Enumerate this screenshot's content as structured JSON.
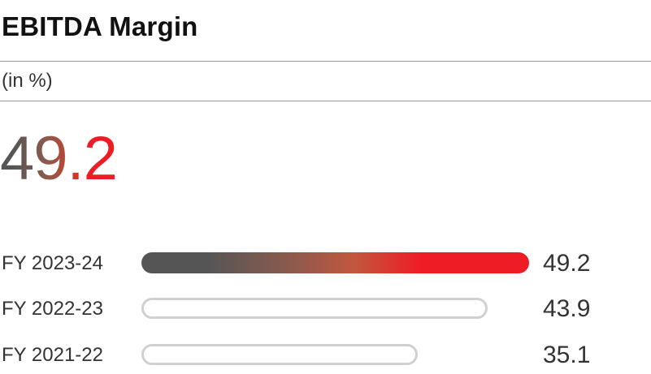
{
  "title": "EBITDA Margin",
  "unit_label": "(in %)",
  "headline_value": "49.2",
  "colors": {
    "highlight_start": "#555555",
    "highlight_end": "#ee1c25",
    "track_outline": "#d0d0d0"
  },
  "chart_data": {
    "type": "bar",
    "orientation": "horizontal",
    "categories": [
      "FY 2023-24",
      "FY 2022-23",
      "FY 2021-22"
    ],
    "values": [
      49.2,
      43.9,
      35.1
    ],
    "value_labels": [
      "49.2",
      "43.9",
      "35.1"
    ],
    "title": "EBITDA Margin",
    "unit": "(in %)",
    "xlim": [
      0,
      49.2
    ],
    "grid": false
  }
}
